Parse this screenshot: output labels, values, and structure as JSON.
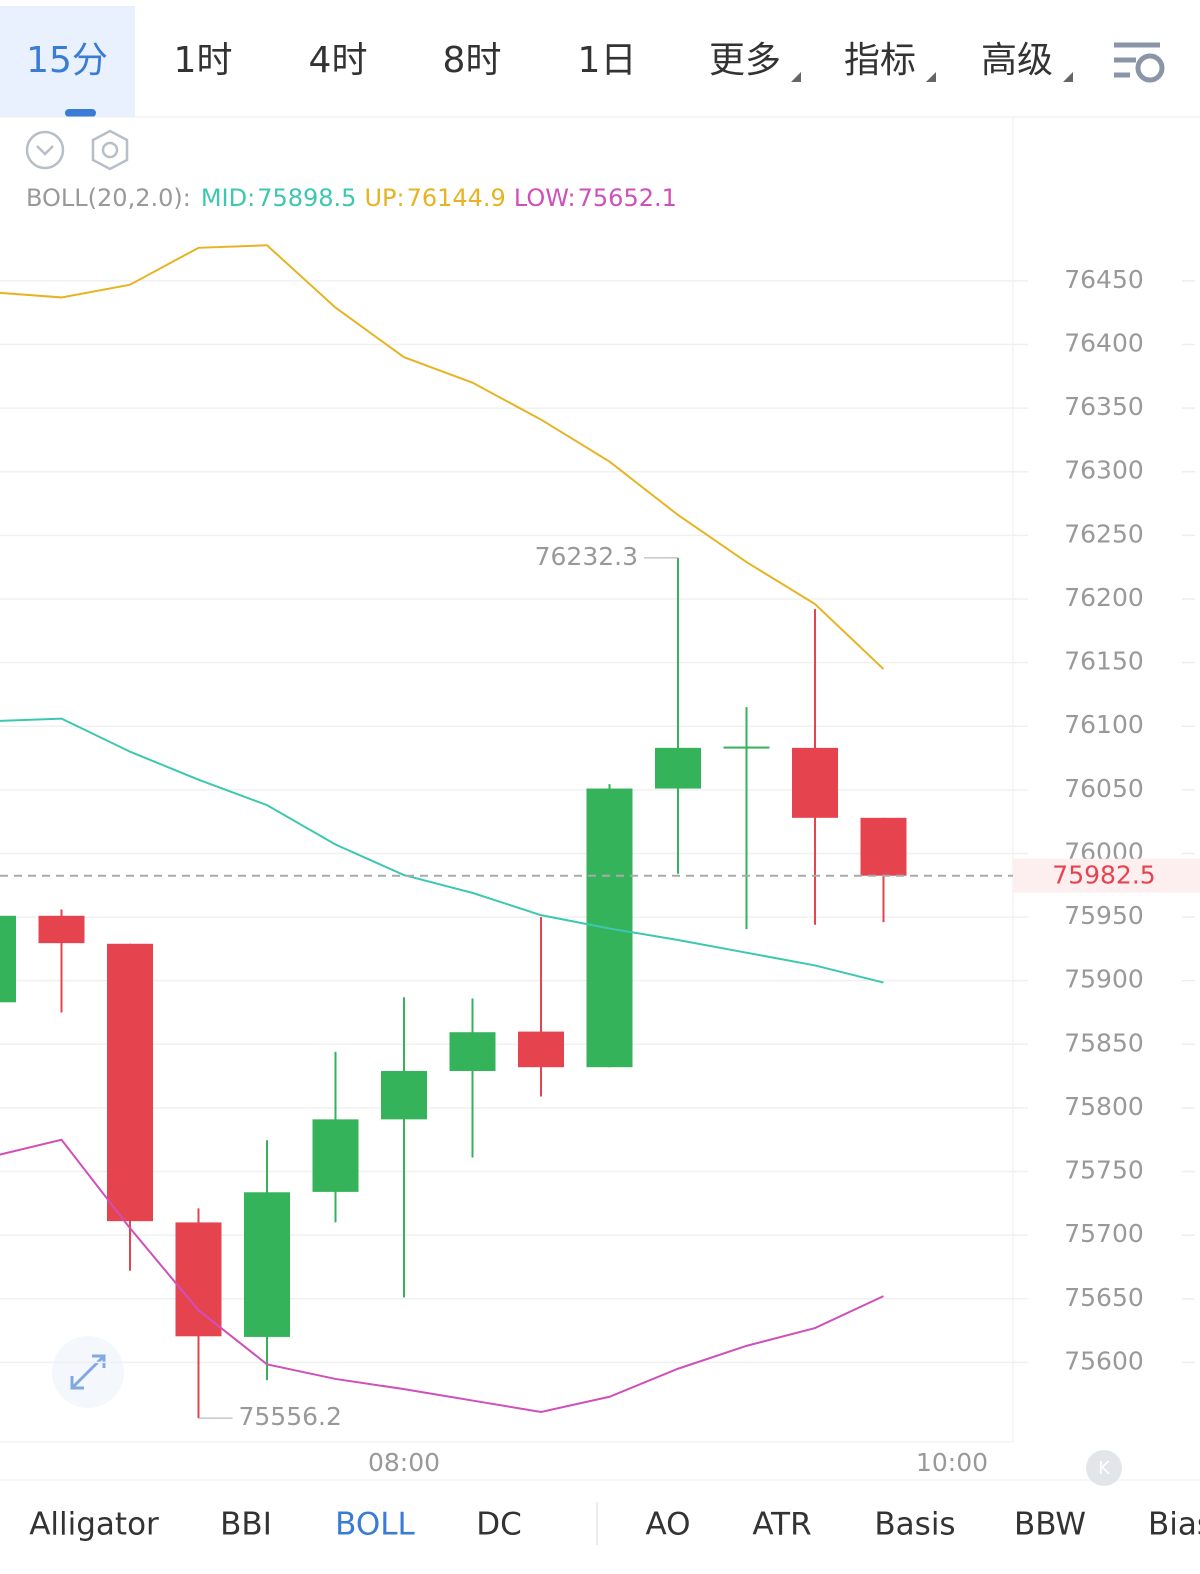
{
  "tabs": [
    "15分",
    "1时",
    "4时",
    "8时",
    "1日",
    "更多",
    "指标",
    "高级"
  ],
  "indicator_tabs": [
    "Alligator",
    "BBI",
    "BOLL",
    "DC",
    "AO",
    "ATR",
    "Basis",
    "BBW",
    "Bias"
  ],
  "chart_data": {
    "type": "candlestick",
    "indicator": "BOLL(20,2.0):",
    "series": {
      "up_color": "#34b35a",
      "down_color": "#e5444f",
      "open": [
        75883,
        75951,
        75929,
        75710,
        75620,
        75734,
        75791,
        75829,
        75860,
        75832,
        76051,
        76083,
        76083,
        76028
      ],
      "high": [
        75955,
        75956,
        75929,
        75721,
        75774.6,
        75844,
        75887,
        75886,
        75950,
        76054.5,
        76232.3,
        76115,
        76192,
        76028
      ],
      "low": [
        75880,
        75875,
        75672,
        75556.2,
        75586,
        75710,
        75651,
        75761,
        75809,
        75832,
        75984,
        75940.5,
        75944,
        75946
      ],
      "close": [
        75951,
        75929.5,
        75711,
        75620.5,
        75733.7,
        75791,
        75829,
        75859.5,
        75832,
        76051,
        76083,
        76084,
        76028,
        75982.5
      ]
    },
    "lines": [
      {
        "name": "MID:",
        "color": "#3cc8b0",
        "values": [
          76104,
          76106,
          76080,
          76058,
          76038,
          76007,
          75983,
          75969,
          75951.5,
          75941,
          75932,
          75922,
          75912,
          75898.5
        ]
      },
      {
        "name": "UP:",
        "color": "#e6b422",
        "values": [
          76441,
          76437,
          76447,
          76476,
          76478,
          76429,
          76390,
          76370,
          76341,
          76308,
          76266,
          76229,
          76196,
          76144.9
        ]
      },
      {
        "name": "LOW:",
        "color": "#d04fb8",
        "values": [
          75762,
          75775,
          75705.5,
          75641,
          75598.5,
          75587,
          75579,
          75570,
          75561,
          75573,
          75595,
          75613,
          75627,
          75652.1
        ]
      }
    ],
    "xticks": [
      {
        "value": 6,
        "label": "08:00"
      },
      {
        "value": 14,
        "label": "10:00"
      }
    ],
    "ylim": [
      75539,
      76490
    ],
    "yticks": [
      75600,
      75650,
      75700,
      75750,
      75800,
      75850,
      75900,
      75950,
      76000,
      76050,
      76100,
      76150,
      76200,
      76250,
      76300,
      76350,
      76400,
      76450
    ],
    "grid": true
  }
}
